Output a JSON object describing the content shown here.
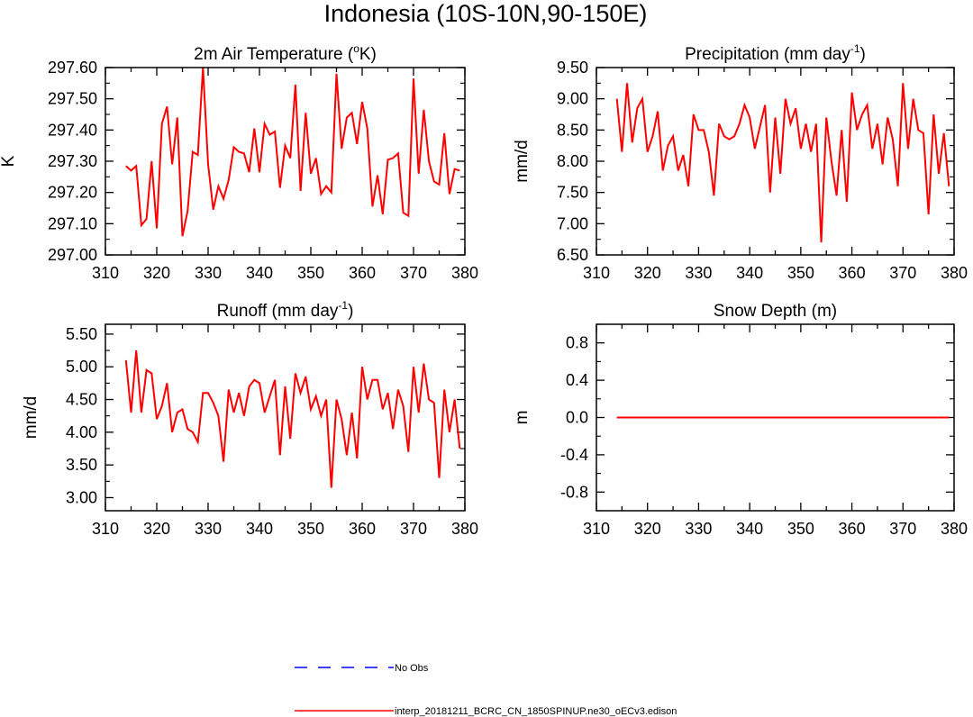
{
  "figure": {
    "title": "Indonesia (10S-10N,90-150E)"
  },
  "chart_data": [
    {
      "type": "line",
      "title": "2m Air Temperature (",
      "title_sup": "o",
      "title_after": "K)",
      "xlabel": "",
      "ylabel": "K",
      "xlim": [
        310,
        380
      ],
      "ylim": [
        297.0,
        297.6
      ],
      "xticks": [
        310,
        320,
        330,
        340,
        350,
        360,
        370,
        380
      ],
      "yticks": [
        "297.00",
        "297.10",
        "297.20",
        "297.30",
        "297.40",
        "297.50",
        "297.60"
      ],
      "series": [
        {
          "color": "#ff0000",
          "x": [
            314,
            315,
            316,
            317,
            318,
            319,
            320,
            321,
            322,
            323,
            324,
            325,
            326,
            327,
            328,
            329,
            330,
            331,
            332,
            333,
            334,
            335,
            336,
            337,
            338,
            339,
            340,
            341,
            342,
            343,
            344,
            345,
            346,
            347,
            348,
            349,
            350,
            351,
            352,
            353,
            354,
            355,
            356,
            357,
            358,
            359,
            360,
            361,
            362,
            363,
            364,
            365,
            366,
            367,
            368,
            369,
            370,
            371,
            372,
            373,
            374,
            375,
            376,
            377,
            378,
            379
          ],
          "y": [
            297.285,
            297.27,
            297.285,
            297.095,
            297.115,
            297.3,
            297.085,
            297.42,
            297.475,
            297.29,
            297.44,
            297.06,
            297.14,
            297.33,
            297.32,
            297.6,
            297.29,
            297.145,
            297.22,
            297.18,
            297.24,
            297.345,
            297.33,
            297.325,
            297.265,
            297.405,
            297.265,
            297.42,
            297.385,
            297.395,
            297.215,
            297.35,
            297.31,
            297.545,
            297.205,
            297.455,
            297.26,
            297.31,
            297.195,
            297.22,
            297.2,
            297.58,
            297.34,
            297.44,
            297.455,
            297.355,
            297.49,
            297.405,
            297.155,
            297.255,
            297.13,
            297.305,
            297.31,
            297.325,
            297.135,
            297.125,
            297.565,
            297.26,
            297.465,
            297.3,
            297.235,
            297.225,
            297.39,
            297.195,
            297.275,
            297.27
          ]
        }
      ]
    },
    {
      "type": "line",
      "title": "Precipitation (mm day",
      "title_sup": "-1",
      "title_after": ")",
      "xlabel": "",
      "ylabel": "mm/d",
      "xlim": [
        310,
        380
      ],
      "ylim": [
        6.5,
        9.5
      ],
      "xticks": [
        310,
        320,
        330,
        340,
        350,
        360,
        370,
        380
      ],
      "yticks": [
        "6.50",
        "7.00",
        "7.50",
        "8.00",
        "8.50",
        "9.00",
        "9.50"
      ],
      "series": [
        {
          "color": "#ff0000",
          "x": [
            314,
            315,
            316,
            317,
            318,
            319,
            320,
            321,
            322,
            323,
            324,
            325,
            326,
            327,
            328,
            329,
            330,
            331,
            332,
            333,
            334,
            335,
            336,
            337,
            338,
            339,
            340,
            341,
            342,
            343,
            344,
            345,
            346,
            347,
            348,
            349,
            350,
            351,
            352,
            353,
            354,
            355,
            356,
            357,
            358,
            359,
            360,
            361,
            362,
            363,
            364,
            365,
            366,
            367,
            368,
            369,
            370,
            371,
            372,
            373,
            374,
            375,
            376,
            377,
            378,
            379
          ],
          "y": [
            9.0,
            8.15,
            9.25,
            8.3,
            8.85,
            9.0,
            8.15,
            8.4,
            8.8,
            7.85,
            8.25,
            8.4,
            7.85,
            8.1,
            7.6,
            8.75,
            8.5,
            8.5,
            8.15,
            7.45,
            8.6,
            8.4,
            8.35,
            8.4,
            8.6,
            8.9,
            8.7,
            8.2,
            8.55,
            8.9,
            7.5,
            8.7,
            7.8,
            9.0,
            8.6,
            8.85,
            8.2,
            8.6,
            8.15,
            8.6,
            6.7,
            8.7,
            8.0,
            7.45,
            8.5,
            7.35,
            9.1,
            8.5,
            8.75,
            8.9,
            8.2,
            8.6,
            7.95,
            8.7,
            8.35,
            7.6,
            9.25,
            8.2,
            9.0,
            8.5,
            8.45,
            7.15,
            8.75,
            7.8,
            8.45,
            7.6
          ]
        }
      ]
    },
    {
      "type": "line",
      "title": "Runoff (mm day",
      "title_sup": "-1",
      "title_after": ")",
      "xlabel": "",
      "ylabel": "mm/d",
      "xlim": [
        310,
        380
      ],
      "ylim": [
        2.8,
        5.65
      ],
      "xticks": [
        310,
        320,
        330,
        340,
        350,
        360,
        370,
        380
      ],
      "yticks": [
        "3.00",
        "3.50",
        "4.00",
        "4.50",
        "5.00",
        "5.50"
      ],
      "ytick_values": [
        3.0,
        3.5,
        4.0,
        4.5,
        5.0,
        5.5
      ],
      "series": [
        {
          "color": "#ff0000",
          "x": [
            314,
            315,
            316,
            317,
            318,
            319,
            320,
            321,
            322,
            323,
            324,
            325,
            326,
            327,
            328,
            329,
            330,
            331,
            332,
            333,
            334,
            335,
            336,
            337,
            338,
            339,
            340,
            341,
            342,
            343,
            344,
            345,
            346,
            347,
            348,
            349,
            350,
            351,
            352,
            353,
            354,
            355,
            356,
            357,
            358,
            359,
            360,
            361,
            362,
            363,
            364,
            365,
            366,
            367,
            368,
            369,
            370,
            371,
            372,
            373,
            374,
            375,
            376,
            377,
            378,
            379
          ],
          "y": [
            5.1,
            4.3,
            5.25,
            4.3,
            4.95,
            4.9,
            4.2,
            4.4,
            4.75,
            4.0,
            4.3,
            4.35,
            4.05,
            4.0,
            3.85,
            4.6,
            4.6,
            4.45,
            4.25,
            3.55,
            4.65,
            4.3,
            4.6,
            4.25,
            4.7,
            4.8,
            4.75,
            4.3,
            4.55,
            4.8,
            3.65,
            4.7,
            3.9,
            4.9,
            4.6,
            4.85,
            4.35,
            4.55,
            4.25,
            4.5,
            3.15,
            4.5,
            4.2,
            3.65,
            4.3,
            3.6,
            5.0,
            4.5,
            4.8,
            4.8,
            4.35,
            4.6,
            4.05,
            4.65,
            4.4,
            3.7,
            5.0,
            4.3,
            5.05,
            4.5,
            4.45,
            3.3,
            4.65,
            4.0,
            4.5,
            3.75
          ]
        }
      ]
    },
    {
      "type": "line",
      "title": "Snow Depth (m)",
      "title_sup": "",
      "title_after": "",
      "xlabel": "",
      "ylabel": "m",
      "xlim": [
        310,
        380
      ],
      "ylim": [
        -1.0,
        1.0
      ],
      "xticks": [
        310,
        320,
        330,
        340,
        350,
        360,
        370,
        380
      ],
      "yticks": [
        "-0.8",
        "-0.4",
        "0.0",
        "0.4",
        "0.8"
      ],
      "ytick_values": [
        -0.8,
        -0.4,
        0.0,
        0.4,
        0.8
      ],
      "series": [
        {
          "color": "#ff0000",
          "x": [
            314,
            379
          ],
          "y": [
            0.0,
            0.0
          ]
        }
      ]
    }
  ],
  "legend": {
    "position": "bottom-center",
    "items": [
      {
        "label": "No Obs",
        "color": "#0000ff",
        "style": "dashed"
      },
      {
        "label": "interp_20181211_BCRC_CN_1850SPINUP.ne30_oECv3.edison",
        "color": "#ff0000",
        "style": "solid"
      }
    ]
  }
}
